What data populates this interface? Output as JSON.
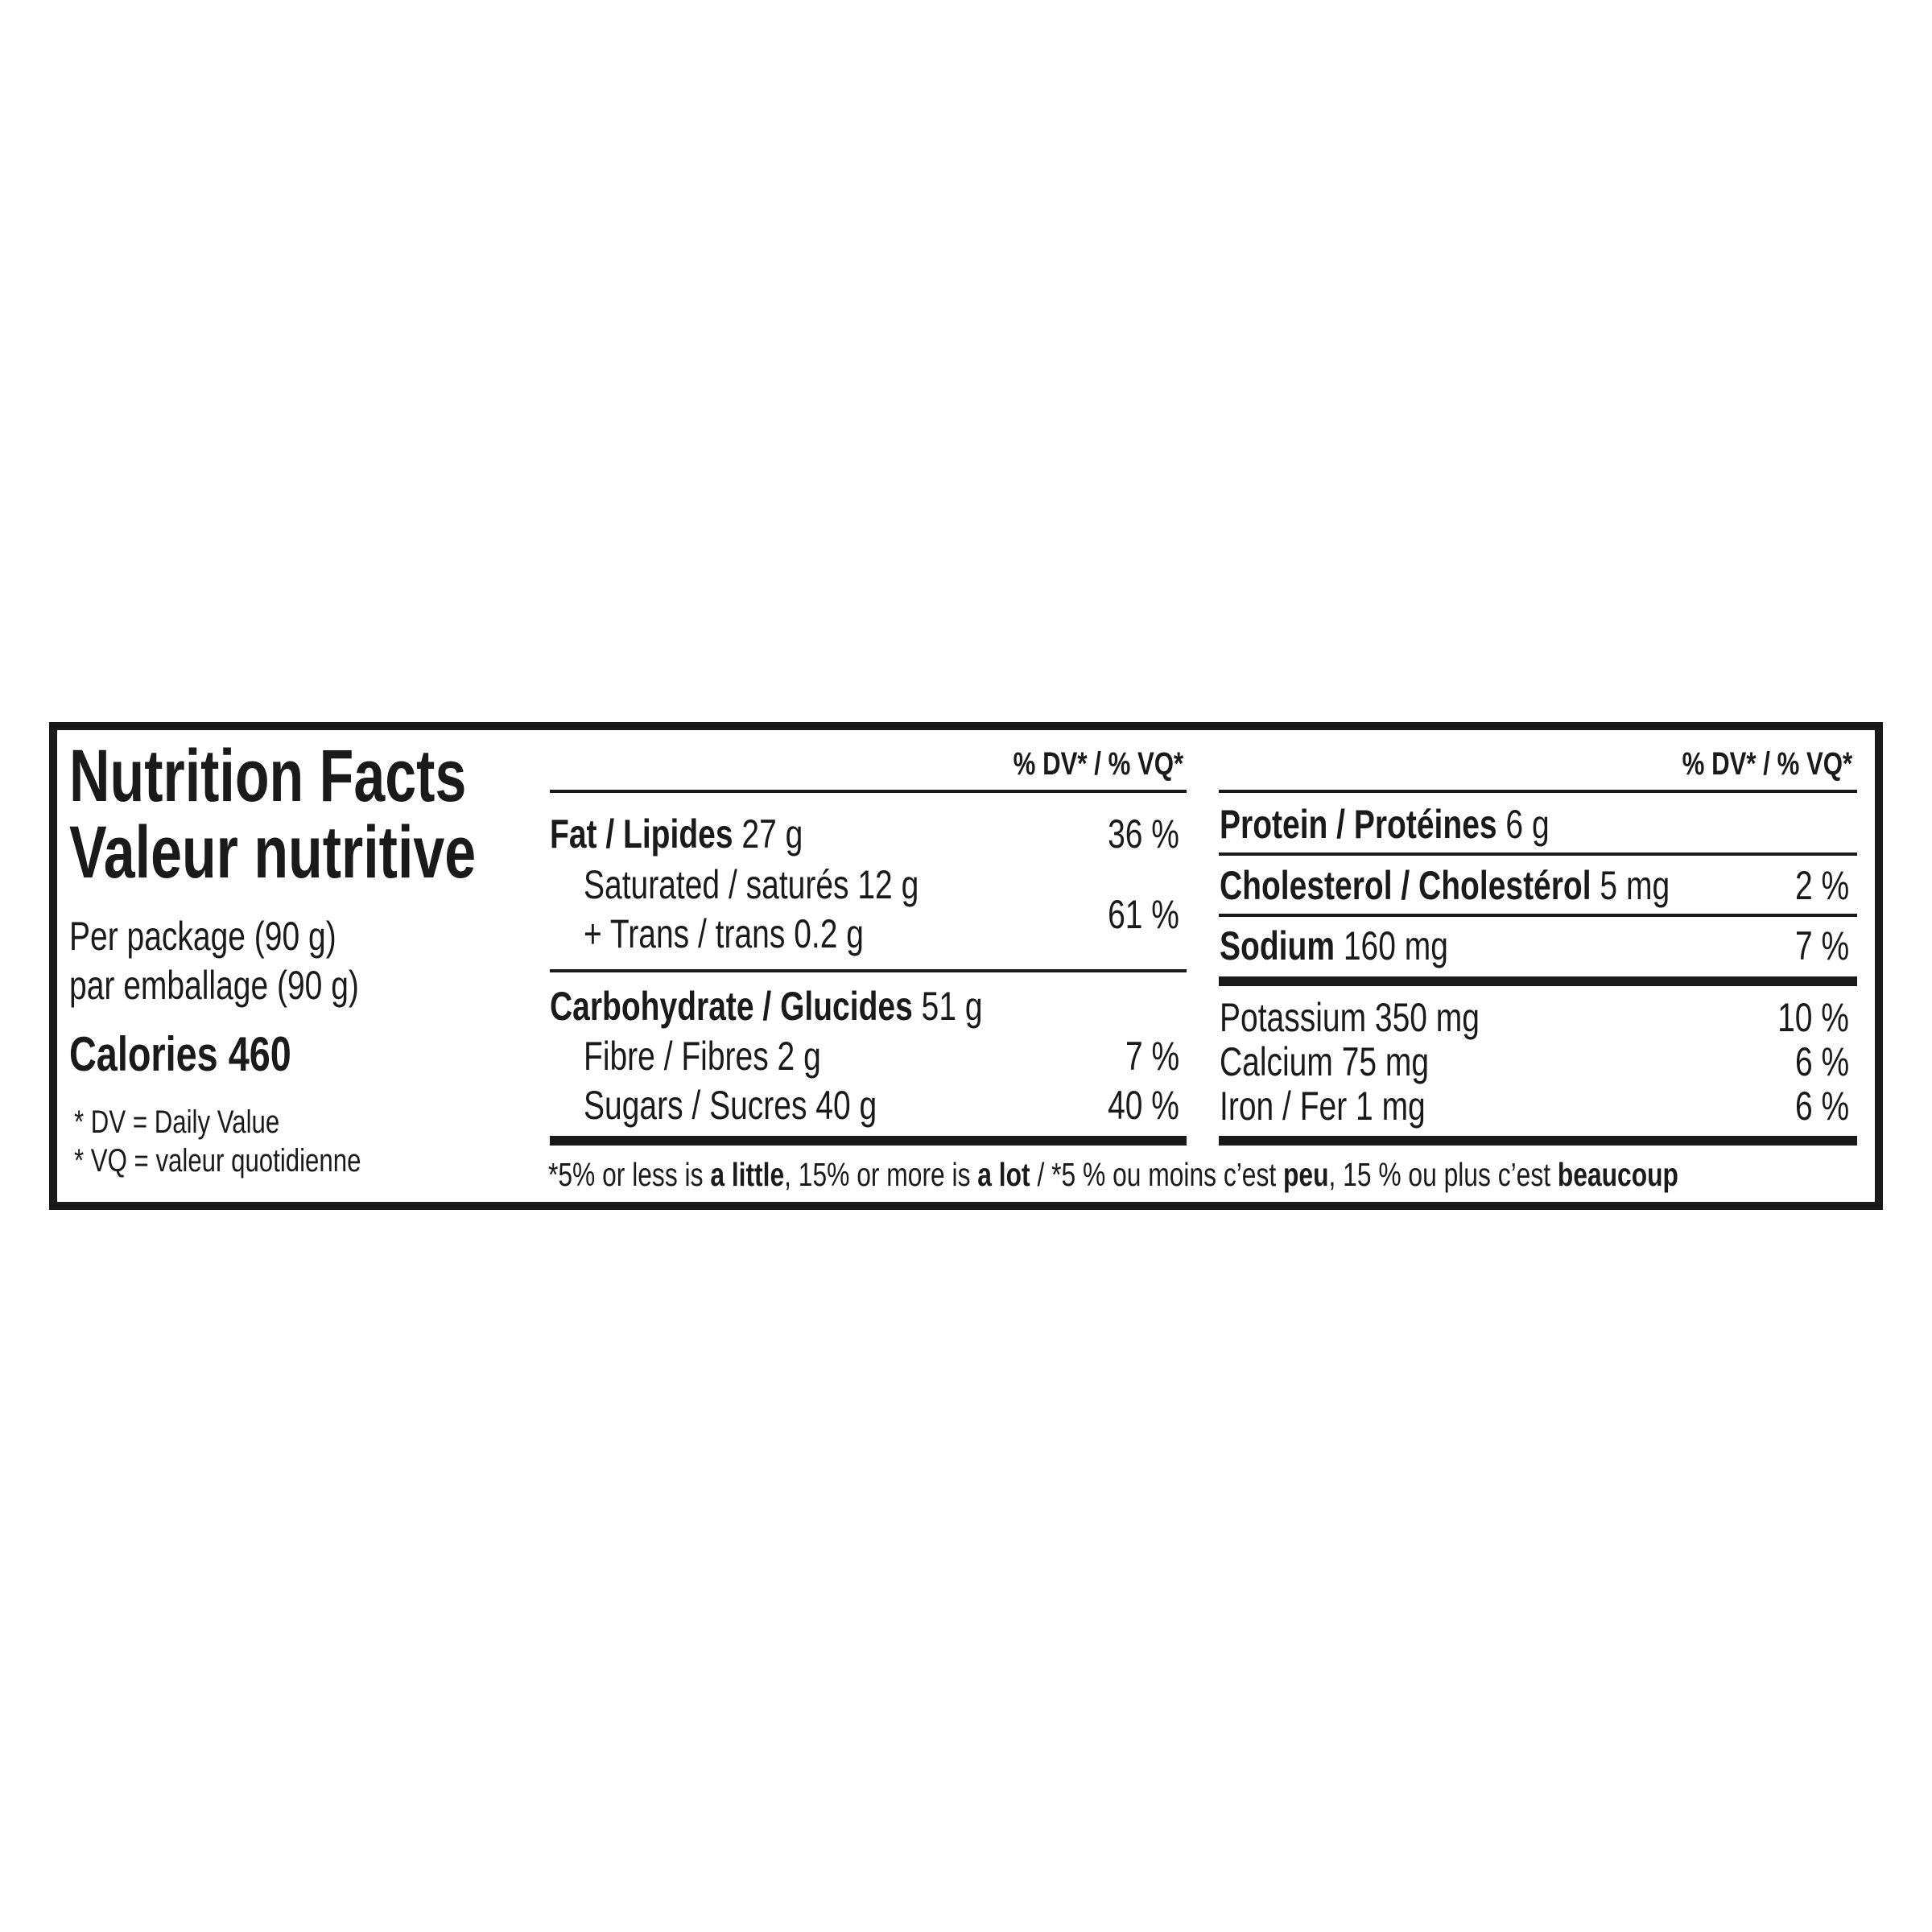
{
  "title_en": "Nutrition Facts",
  "title_fr": "Valeur nutritive",
  "serving_en": "Per package (90 g)",
  "serving_fr": "par emballage (90 g)",
  "calories_label": "Calories",
  "calories_value": "460",
  "dv_note": "* DV = Daily Value",
  "vq_note": "* VQ = valeur quotidienne",
  "dv_header": "% DV* / % VQ*",
  "left_rows": {
    "fat": {
      "label": "Fat / Lipides",
      "amount": "27 g",
      "dv": "36 %"
    },
    "saturated": {
      "label": "Saturated / saturés 12 g"
    },
    "trans": {
      "label": "+ Trans / trans 0.2 g"
    },
    "sat_trans_dv": "61 %",
    "carb": {
      "label": "Carbohydrate / Glucides",
      "amount": "51 g"
    },
    "fibre": {
      "label": "Fibre / Fibres 2 g",
      "dv": "7 %"
    },
    "sugars": {
      "label": "Sugars / Sucres 40 g",
      "dv": "40 %"
    }
  },
  "right_rows": {
    "protein": {
      "label": "Protein / Protéines",
      "amount": "6 g"
    },
    "cholesterol": {
      "label": "Cholesterol / Cholestérol",
      "amount": "5 mg",
      "dv": "2 %"
    },
    "sodium": {
      "label": "Sodium",
      "amount": "160 mg",
      "dv": "7 %"
    },
    "potassium": {
      "label": "Potassium 350 mg",
      "dv": "10 %"
    },
    "calcium": {
      "label": "Calcium 75 mg",
      "dv": "6 %"
    },
    "iron": {
      "label": "Iron / Fer 1 mg",
      "dv": "6 %"
    }
  },
  "footnote": {
    "p1": "*5% or less is ",
    "b1": "a little",
    "p2": ", 15% or more is ",
    "b2": "a lot",
    "p3": " / *5 % ou moins c’est ",
    "b3": "peu",
    "p4": ", 15 % ou plus c’est ",
    "b4": "beaucoup"
  }
}
